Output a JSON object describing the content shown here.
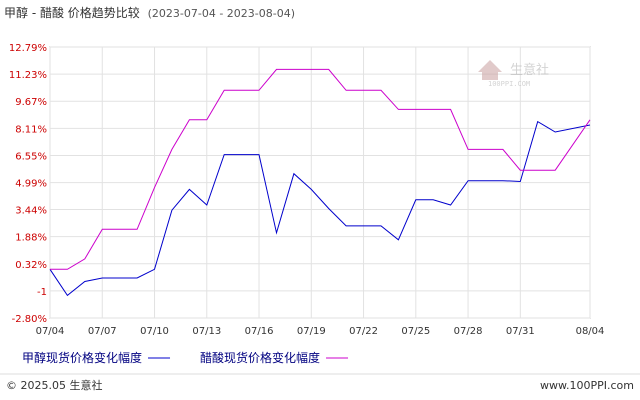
{
  "chart_data": {
    "type": "line",
    "title": "甲醇 - 醋酸 价格趋势比较",
    "date_range": "(2023-07-04 - 2023-08-04)",
    "y_ticks": [
      "12.79%",
      "11.23%",
      "9.67%",
      "8.11%",
      "6.55%",
      "4.99%",
      "3.44%",
      "1.88%",
      "0.32%",
      "-1",
      "-2.80%"
    ],
    "y_tick_values": [
      12.79,
      11.23,
      9.67,
      8.11,
      6.55,
      4.99,
      3.44,
      1.88,
      0.32,
      -1.24,
      -2.8
    ],
    "ylim": [
      -2.8,
      12.79
    ],
    "x_ticks": [
      "07/04",
      "07/07",
      "07/10",
      "07/13",
      "07/16",
      "07/19",
      "07/22",
      "07/25",
      "07/28",
      "07/31",
      "08/04"
    ],
    "x_tick_dates": [
      "2023-07-04",
      "2023-07-07",
      "2023-07-10",
      "2023-07-13",
      "2023-07-16",
      "2023-07-19",
      "2023-07-22",
      "2023-07-25",
      "2023-07-28",
      "2023-07-31",
      "2023-08-04"
    ],
    "grid": true,
    "legend_position": "bottom",
    "watermark": "生意社 100PPI.COM",
    "series": [
      {
        "name": "甲醇现货价格变化幅度",
        "color": "#0000cc",
        "x": [
          "2023-07-04",
          "2023-07-05",
          "2023-07-06",
          "2023-07-07",
          "2023-07-08",
          "2023-07-09",
          "2023-07-10",
          "2023-07-11",
          "2023-07-12",
          "2023-07-13",
          "2023-07-14",
          "2023-07-15",
          "2023-07-16",
          "2023-07-17",
          "2023-07-18",
          "2023-07-19",
          "2023-07-20",
          "2023-07-21",
          "2023-07-22",
          "2023-07-23",
          "2023-07-24",
          "2023-07-25",
          "2023-07-26",
          "2023-07-27",
          "2023-07-28",
          "2023-07-29",
          "2023-07-30",
          "2023-07-31",
          "2023-08-01",
          "2023-08-02",
          "2023-08-04"
        ],
        "values": [
          0.0,
          -1.5,
          -0.7,
          -0.5,
          -0.5,
          -0.5,
          0.0,
          3.4,
          4.6,
          3.7,
          6.6,
          6.6,
          6.6,
          2.1,
          5.5,
          4.6,
          3.5,
          2.5,
          2.5,
          2.5,
          1.7,
          4.0,
          4.0,
          3.7,
          5.1,
          5.1,
          5.1,
          5.05,
          8.5,
          7.9,
          8.3
        ],
        "x_offsets": [
          0,
          1,
          2,
          3,
          4,
          5,
          6,
          7,
          8,
          9,
          10,
          11,
          12,
          13,
          14,
          15,
          16,
          17,
          18,
          19,
          20,
          21,
          22,
          23,
          24,
          25,
          26,
          27,
          28,
          29,
          31
        ]
      },
      {
        "name": "醋酸现货价格变化幅度",
        "color": "#cc00cc",
        "x": [
          "2023-07-04",
          "2023-07-05",
          "2023-07-06",
          "2023-07-07",
          "2023-07-08",
          "2023-07-09",
          "2023-07-10",
          "2023-07-11",
          "2023-07-12",
          "2023-07-13",
          "2023-07-14",
          "2023-07-15",
          "2023-07-16",
          "2023-07-17",
          "2023-07-18",
          "2023-07-19",
          "2023-07-20",
          "2023-07-21",
          "2023-07-22",
          "2023-07-23",
          "2023-07-24",
          "2023-07-25",
          "2023-07-26",
          "2023-07-27",
          "2023-07-28",
          "2023-07-29",
          "2023-07-30",
          "2023-07-31",
          "2023-08-01",
          "2023-08-02",
          "2023-08-04"
        ],
        "values": [
          0.0,
          0.0,
          0.6,
          2.3,
          2.3,
          2.3,
          4.7,
          6.9,
          8.6,
          8.6,
          10.3,
          10.3,
          10.3,
          11.5,
          11.5,
          11.5,
          11.5,
          10.3,
          10.3,
          10.3,
          9.2,
          9.2,
          9.2,
          9.2,
          6.9,
          6.9,
          6.9,
          5.7,
          5.7,
          5.7,
          8.6
        ]
      }
    ]
  },
  "copyright": "© 2025.05 生意社",
  "site": "www.100PPI.com"
}
